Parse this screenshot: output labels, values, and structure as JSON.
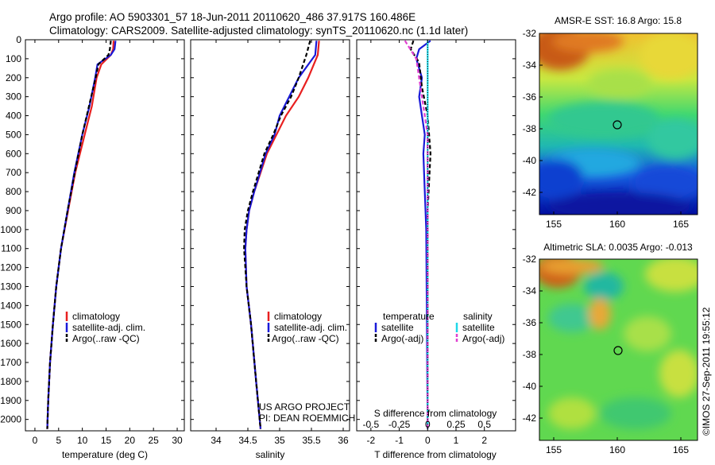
{
  "header": {
    "line1": "Argo profile: AO 5903301_57 18-Jun-2011 20110620_486 37.917S 160.486E",
    "line2": "Climatology: CARS2009. Satellite-adjusted climatology: synTS_20110620.nc (1.1d later)"
  },
  "colors": {
    "climatology": "#e82020",
    "satellite": "#1a1ad8",
    "argo": "#000000",
    "sal_satellite": "#20d8e8",
    "sal_argo": "#e040d0"
  },
  "chart_data": [
    {
      "type": "line",
      "id": "temperature",
      "xlabel": "temperature (deg C)",
      "ylabel": "",
      "xlim": [
        -2,
        31.5
      ],
      "ylim": [
        2060,
        0
      ],
      "xticks": [
        0,
        5,
        10,
        15,
        20,
        25,
        30
      ],
      "yticks": [
        0,
        100,
        200,
        300,
        400,
        500,
        600,
        700,
        800,
        900,
        1000,
        1100,
        1200,
        1300,
        1400,
        1500,
        1600,
        1700,
        1800,
        1900,
        2000
      ],
      "legend": [
        "climatology",
        "satellite-adj. clim.",
        "Argo(..raw -QC)"
      ],
      "series": [
        {
          "name": "climatology",
          "color": "#e82020",
          "dash": "",
          "points": [
            [
              16.6,
              5
            ],
            [
              16.5,
              50
            ],
            [
              16,
              80
            ],
            [
              14,
              130
            ],
            [
              13,
              200
            ],
            [
              12,
              350
            ],
            [
              10.5,
              500
            ],
            [
              8.5,
              700
            ],
            [
              7,
              900
            ],
            [
              5.5,
              1100
            ],
            [
              4.5,
              1300
            ],
            [
              3.8,
              1500
            ],
            [
              3.2,
              1700
            ],
            [
              2.8,
              1900
            ],
            [
              2.6,
              2050
            ]
          ]
        },
        {
          "name": "satellite-adj. clim.",
          "color": "#1a1ad8",
          "dash": "",
          "points": [
            [
              17,
              5
            ],
            [
              16.8,
              50
            ],
            [
              16,
              80
            ],
            [
              13.2,
              130
            ],
            [
              12.7,
              200
            ],
            [
              11.5,
              350
            ],
            [
              10,
              500
            ],
            [
              8.3,
              700
            ],
            [
              6.9,
              900
            ],
            [
              5.5,
              1100
            ],
            [
              4.5,
              1300
            ],
            [
              3.8,
              1500
            ],
            [
              3.2,
              1700
            ],
            [
              2.8,
              1900
            ],
            [
              2.6,
              2050
            ]
          ]
        },
        {
          "name": "Argo(..raw -QC)",
          "color": "#000000",
          "dash": "5,3",
          "points": [
            [
              16,
              5
            ],
            [
              15.8,
              50
            ],
            [
              15.5,
              80
            ],
            [
              13.4,
              130
            ],
            [
              12.8,
              200
            ],
            [
              11.4,
              350
            ],
            [
              10,
              500
            ],
            [
              8.4,
              700
            ],
            [
              6.9,
              900
            ],
            [
              5.5,
              1100
            ],
            [
              4.5,
              1300
            ],
            [
              3.8,
              1500
            ],
            [
              3.2,
              1700
            ],
            [
              2.8,
              1900
            ],
            [
              2.6,
              2050
            ]
          ]
        }
      ]
    },
    {
      "type": "line",
      "id": "salinity",
      "xlabel": "salinity",
      "ylabel": "",
      "xlim": [
        33.6,
        36.1
      ],
      "ylim": [
        2060,
        0
      ],
      "xticks": [
        34,
        34.5,
        35,
        35.5,
        36
      ],
      "legend": [
        "climatology",
        "satellite-adj. clim.",
        " Argo(..raw -QC)"
      ],
      "series": [
        {
          "name": "climatology",
          "color": "#e82020",
          "dash": "",
          "points": [
            [
              35.62,
              5
            ],
            [
              35.6,
              80
            ],
            [
              35.45,
              200
            ],
            [
              35.3,
              300
            ],
            [
              35.1,
              400
            ],
            [
              34.95,
              500
            ],
            [
              34.8,
              600
            ],
            [
              34.6,
              800
            ],
            [
              34.52,
              900
            ],
            [
              34.48,
              1000
            ],
            [
              34.46,
              1100
            ],
            [
              34.48,
              1300
            ],
            [
              34.55,
              1500
            ],
            [
              34.63,
              1800
            ],
            [
              34.7,
              2050
            ]
          ]
        },
        {
          "name": "satellite-adj. clim.",
          "color": "#1a1ad8",
          "dash": "",
          "points": [
            [
              35.58,
              5
            ],
            [
              35.56,
              80
            ],
            [
              35.3,
              200
            ],
            [
              35.15,
              300
            ],
            [
              35.0,
              400
            ],
            [
              34.92,
              500
            ],
            [
              34.78,
              600
            ],
            [
              34.6,
              800
            ],
            [
              34.52,
              900
            ],
            [
              34.48,
              1000
            ],
            [
              34.46,
              1100
            ],
            [
              34.48,
              1300
            ],
            [
              34.55,
              1500
            ],
            [
              34.63,
              1800
            ],
            [
              34.7,
              2050
            ]
          ]
        },
        {
          "name": " Argo(..raw -QC)",
          "color": "#000000",
          "dash": "5,3",
          "points": [
            [
              35.48,
              5
            ],
            [
              35.42,
              80
            ],
            [
              35.3,
              200
            ],
            [
              35.18,
              300
            ],
            [
              35.02,
              400
            ],
            [
              34.9,
              500
            ],
            [
              34.76,
              600
            ],
            [
              34.58,
              800
            ],
            [
              34.5,
              900
            ],
            [
              34.45,
              1000
            ],
            [
              34.44,
              1100
            ],
            [
              34.48,
              1300
            ],
            [
              34.55,
              1500
            ],
            [
              34.63,
              1800
            ],
            [
              34.7,
              2050
            ]
          ]
        }
      ]
    },
    {
      "type": "line",
      "id": "difference",
      "xlabel": "T difference from climatology",
      "xlabel_top": "S difference from climatology",
      "xlim": [
        -2.5,
        3.1
      ],
      "ylim": [
        2060,
        0
      ],
      "xticks": [
        -2,
        -1,
        0,
        1,
        2
      ],
      "xticks_top": [
        -0.5,
        -0.25,
        0,
        0.25,
        0.5
      ],
      "legend_t_title": "temperature",
      "legend_s_title": "salinity",
      "legend": [
        "satellite",
        "Argo(-adj)",
        "satellite",
        "Argo(-adj)"
      ],
      "series": [
        {
          "name": "T satellite",
          "color": "#1a1ad8",
          "dash": "",
          "points": [
            [
              0.1,
              5
            ],
            [
              -0.3,
              50
            ],
            [
              -0.4,
              100
            ],
            [
              -0.2,
              200
            ],
            [
              -0.3,
              300
            ],
            [
              -0.2,
              400
            ],
            [
              -0.1,
              500
            ],
            [
              -0.15,
              600
            ],
            [
              -0.1,
              800
            ],
            [
              -0.05,
              1000
            ],
            [
              0,
              2050
            ]
          ]
        },
        {
          "name": "T Argo(-adj)",
          "color": "#000000",
          "dash": "5,3",
          "points": [
            [
              -0.5,
              5
            ],
            [
              -0.6,
              50
            ],
            [
              -0.3,
              120
            ],
            [
              -0.2,
              250
            ],
            [
              0,
              400
            ],
            [
              0.1,
              600
            ],
            [
              0,
              900
            ],
            [
              0,
              1200
            ],
            [
              0,
              2050
            ]
          ]
        },
        {
          "name": "S satellite",
          "color": "#20d8e8",
          "dash": "",
          "points": [
            [
              0,
              5
            ],
            [
              0,
              100
            ],
            [
              0,
              200
            ],
            [
              0,
              500
            ],
            [
              0,
              600
            ],
            [
              0,
              800
            ],
            [
              0,
              2050
            ]
          ]
        },
        {
          "name": "S Argo(-adj)",
          "color": "#e040d0",
          "dash": "5,3",
          "points": [
            [
              -0.2,
              5
            ],
            [
              -0.1,
              100
            ],
            [
              -0.05,
              300
            ],
            [
              0,
              500
            ],
            [
              0,
              2050
            ]
          ]
        }
      ]
    }
  ],
  "maps": [
    {
      "title": "AMSR-E SST: 16.8 Argo: 15.8",
      "yticks": [
        "-32",
        "-34",
        "-36",
        "-38",
        "-40",
        "-42"
      ],
      "xticks": [
        "155",
        "160",
        "165"
      ]
    },
    {
      "title": "Altimetric SLA: 0.0035 Argo: -0.013",
      "yticks": [
        "-32",
        "-34",
        "-36",
        "-38",
        "-40",
        "-42"
      ],
      "xticks": [
        "155",
        "160",
        "165"
      ]
    }
  ],
  "credits": {
    "project": "US ARGO PROJECT",
    "pi": "PI: DEAN ROEMMICH",
    "imos": "©IMOS 27-Sep-2011 19:55:12"
  }
}
